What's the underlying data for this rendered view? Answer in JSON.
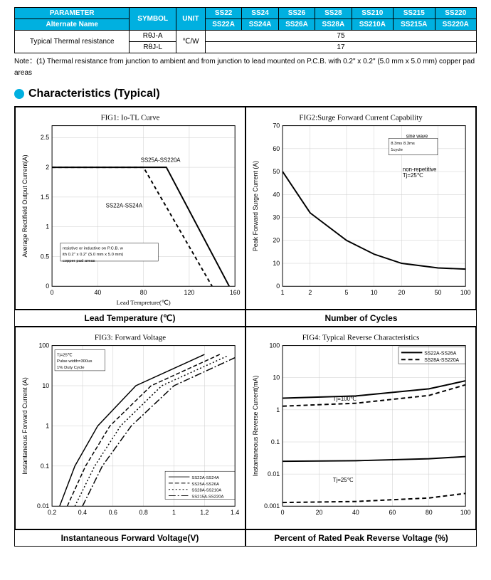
{
  "table": {
    "h_parameter": "PARAMETER",
    "h_symbol": "SYMBOL",
    "h_unit": "UNIT",
    "parts": [
      "SS22",
      "SS24",
      "SS26",
      "SS28",
      "SS210",
      "SS215",
      "SS220"
    ],
    "parts_alt": [
      "SS22A",
      "SS24A",
      "SS26A",
      "SS28A",
      "SS210A",
      "SS215A",
      "SS220A"
    ],
    "alt_name": "Alternate Name",
    "row_param": "Typical Thermal resistance",
    "sym1": "RθJ-A",
    "sym2": "RθJ-L",
    "unit": "℃/W",
    "val1": "75",
    "val2": "17"
  },
  "note": "Note：(1) Thermal resistance from junction to ambient and from junction to lead mounted on P.C.B. with 0.2\" x 0.2\" (5.0 mm x 5.0 mm) copper pad areas",
  "section_title": "Characteristics (Typical)",
  "fig1": {
    "title": "FIG1: Io-TL Curve",
    "ylabel": "Average Rectifield Output Current(A)",
    "xlabel": "Lead Tempreture(℃)",
    "axis_title": "Lead Temperature (℃)",
    "x_ticks": [
      0,
      40,
      80,
      120,
      160
    ],
    "y_ticks": [
      0,
      0.5,
      1.0,
      1.5,
      2.0,
      2.5
    ],
    "note_text": "resistive or inductive on P.C.B. with 0.2\" x 0.2\" (5.0 mm x 5.0 mm) copper pad areas",
    "series1_label": "SS25A-SS220A",
    "series2_label": "SS22A-SS24A",
    "series1": [
      [
        0,
        2.0
      ],
      [
        100,
        2.0
      ],
      [
        155,
        0
      ]
    ],
    "series2": [
      [
        0,
        2.0
      ],
      [
        80,
        2.0
      ],
      [
        140,
        0
      ]
    ]
  },
  "fig2": {
    "title": "FIG2:Surge Forward Current Capability",
    "ylabel": "Peak Forward Surge Current (A)",
    "axis_title": "Number of Cycles",
    "x_ticks": [
      1,
      2,
      5,
      10,
      20,
      50,
      100
    ],
    "y_ticks": [
      0,
      10,
      20,
      30,
      40,
      50,
      60,
      70
    ],
    "note1": "sine wave",
    "note2": "8.3ms  8.3ms",
    "note3": "1cycle",
    "note4": "non-repetitive",
    "note5": "Tj=25℃",
    "series": [
      [
        1,
        50
      ],
      [
        2,
        32
      ],
      [
        5,
        20
      ],
      [
        10,
        14
      ],
      [
        20,
        10
      ],
      [
        50,
        8
      ],
      [
        100,
        7.5
      ]
    ]
  },
  "fig3": {
    "title": "FIG3: Forward Voltage",
    "ylabel": "Instantaneous Forward Current (A)",
    "axis_title": "Instantaneous Forward Voltage(V)",
    "x_ticks": [
      0.2,
      0.4,
      0.6,
      0.8,
      1.0,
      1.2,
      1.4
    ],
    "y_ticks": [
      0.01,
      0.1,
      1.0,
      10.0,
      100
    ],
    "note": "Tj=25℃\nPulse width=300us\n1% Duty Cycle",
    "legend": [
      "SS22A-SS24A",
      "SS25A-SS26A",
      "SS28A-SS210A",
      "SS215A-SS220A"
    ],
    "dash": [
      "",
      "6,3",
      "2,3",
      "10,3,2,3"
    ],
    "s1": [
      [
        0.25,
        0.01
      ],
      [
        0.35,
        0.1
      ],
      [
        0.5,
        1
      ],
      [
        0.75,
        10
      ],
      [
        1.2,
        60
      ]
    ],
    "s2": [
      [
        0.3,
        0.01
      ],
      [
        0.42,
        0.1
      ],
      [
        0.58,
        1
      ],
      [
        0.85,
        10
      ],
      [
        1.3,
        60
      ]
    ],
    "s3": [
      [
        0.35,
        0.01
      ],
      [
        0.48,
        0.1
      ],
      [
        0.65,
        1
      ],
      [
        0.92,
        10
      ],
      [
        1.35,
        55
      ]
    ],
    "s4": [
      [
        0.4,
        0.01
      ],
      [
        0.53,
        0.1
      ],
      [
        0.72,
        1
      ],
      [
        1.0,
        10
      ],
      [
        1.4,
        50
      ]
    ]
  },
  "fig4": {
    "title": "FIG4: Typical Reverse Characteristics",
    "ylabel": "Instantaneous Reverse Current(mA)",
    "axis_title": "Percent of Rated Peak Reverse Voltage (%)",
    "x_ticks": [
      0,
      20,
      40,
      60,
      80,
      100
    ],
    "y_ticks": [
      0.001,
      0.01,
      0.1,
      1.0,
      10,
      100
    ],
    "legend": [
      "SS22A-SS26A",
      "SS28A-SS220A"
    ],
    "label_100": "Tj=100℃",
    "label_25": "Tj=25℃",
    "sA100": [
      [
        0,
        2.3
      ],
      [
        40,
        2.7
      ],
      [
        80,
        4.5
      ],
      [
        100,
        8
      ]
    ],
    "sB100": [
      [
        0,
        1.3
      ],
      [
        40,
        1.6
      ],
      [
        80,
        2.8
      ],
      [
        100,
        6
      ]
    ],
    "sA25": [
      [
        0,
        0.025
      ],
      [
        40,
        0.026
      ],
      [
        80,
        0.03
      ],
      [
        100,
        0.035
      ]
    ],
    "sB25": [
      [
        0,
        0.0013
      ],
      [
        40,
        0.0014
      ],
      [
        80,
        0.0018
      ],
      [
        100,
        0.0025
      ]
    ]
  },
  "colors": {
    "header": "#00b0e0",
    "line": "#000000",
    "grid": "#bbbbbb",
    "text": "#000000",
    "bg": "#ffffff"
  }
}
